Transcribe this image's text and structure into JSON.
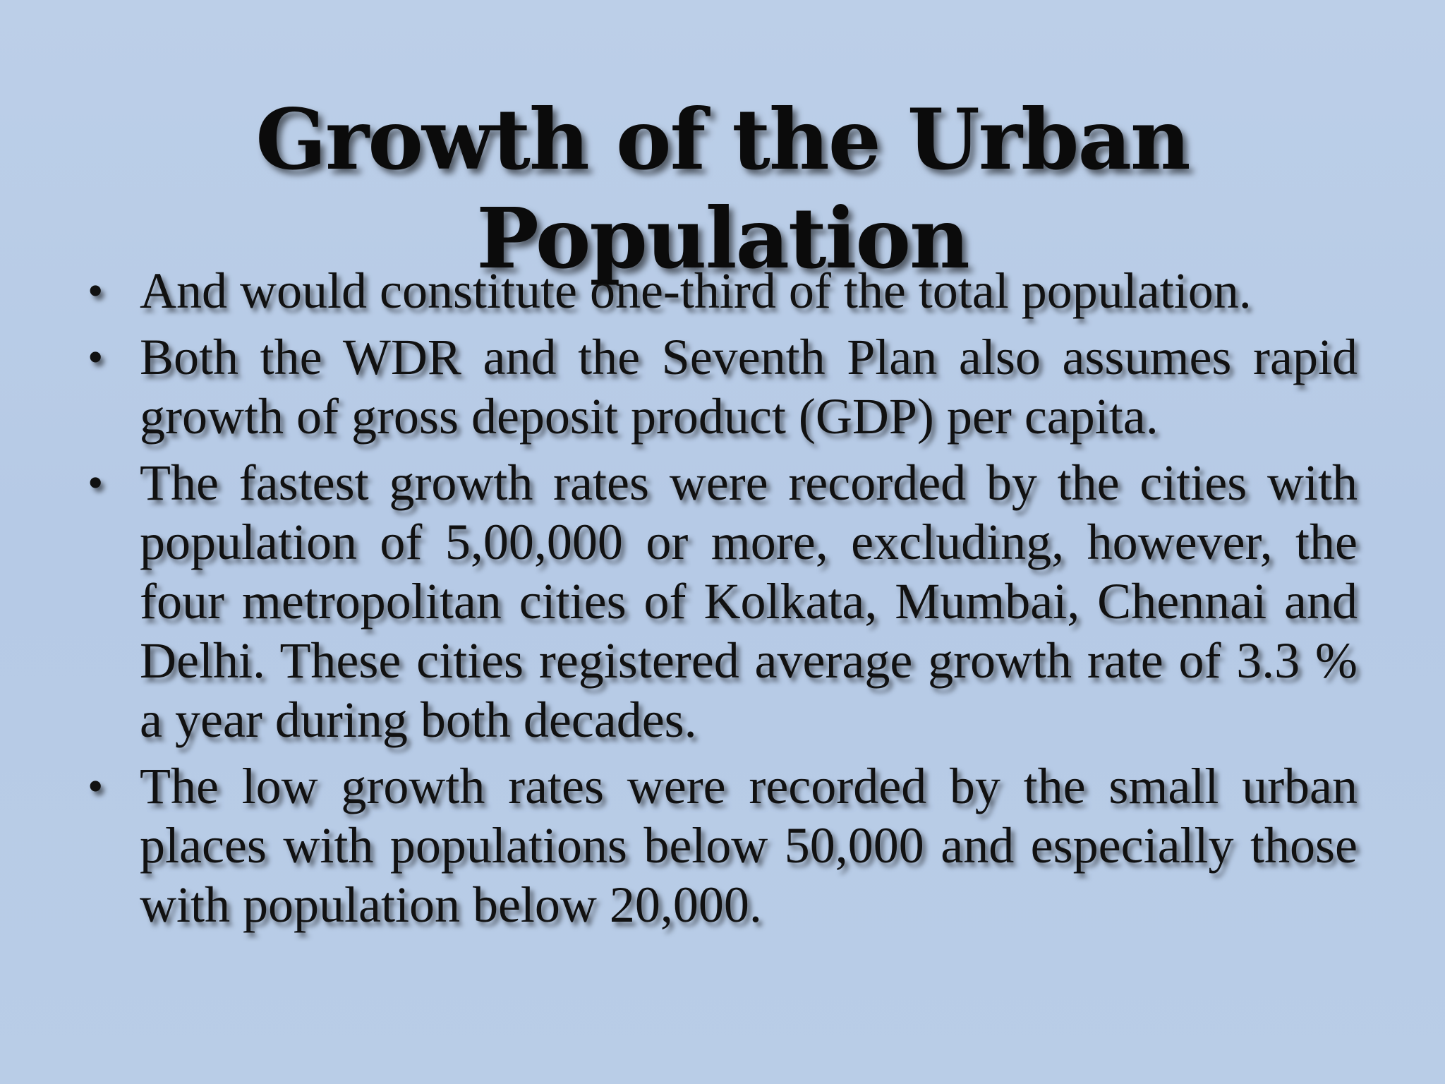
{
  "slide": {
    "title": "Growth of the Urban Population",
    "bullet_symbol": "•",
    "bullets": [
      "And would constitute one-third of the total population.",
      "Both the WDR and the Seventh Plan also assumes rapid growth of gross deposit product (GDP) per capita.",
      "The fastest growth rates were recorded by the cities with population of 5,00,000 or more, excluding, however, the four metropolitan  cities of Kolkata, Mumbai, Chennai and Delhi. These cities registered average growth rate of 3.3 % a year during both decades.",
      "The low growth rates were recorded by the small urban places  with populations below 50,000 and especially those with population below 20,000."
    ],
    "colors": {
      "background": "#b9cce6",
      "text": "#111111"
    }
  }
}
